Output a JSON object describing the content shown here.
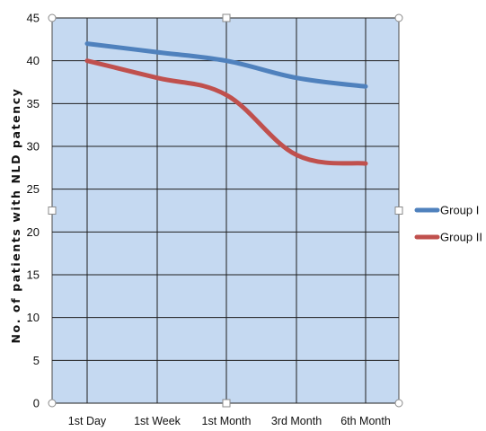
{
  "chart_data": {
    "type": "line",
    "categories": [
      "1st Day",
      "1st Week",
      "1st Month",
      "3rd Month",
      "6th Month"
    ],
    "series": [
      {
        "name": "Group I",
        "values": [
          42,
          41,
          40,
          38,
          37
        ],
        "color": "#4f81bd"
      },
      {
        "name": "Group II",
        "values": [
          40,
          38,
          36,
          29,
          28
        ],
        "color": "#c0504d"
      }
    ],
    "xlabel": "",
    "ylabel": "No. of patients with NLD patency",
    "ylim": [
      0,
      45
    ],
    "yticks": [
      0,
      5,
      10,
      15,
      20,
      25,
      30,
      35,
      40,
      45
    ],
    "grid": true,
    "legend_position": "right",
    "plot_background": "#c5d9f1"
  }
}
